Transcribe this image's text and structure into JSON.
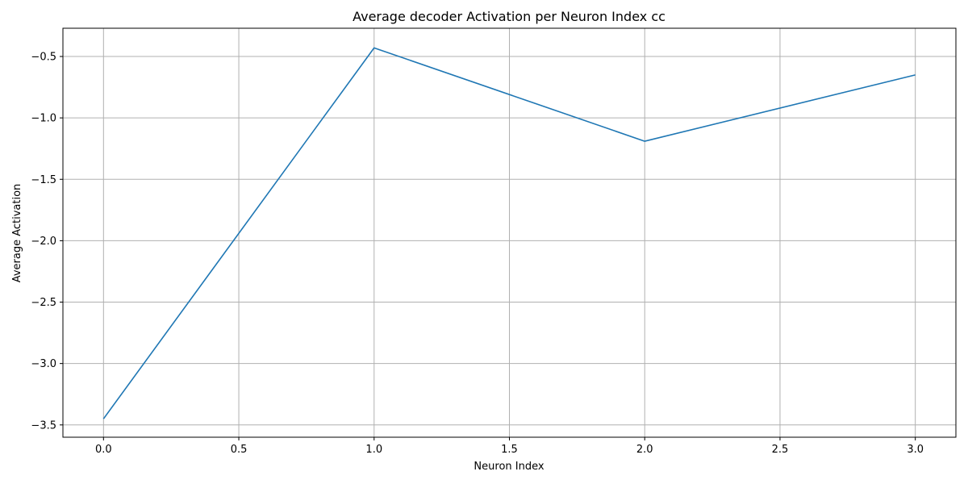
{
  "chart_data": {
    "type": "line",
    "title": "Average decoder Activation per Neuron Index cc",
    "xlabel": "Neuron Index",
    "ylabel": "Average Activation",
    "x": [
      0,
      1,
      2,
      3
    ],
    "series": [
      {
        "values": [
          -3.45,
          -0.43,
          -1.19,
          -0.65
        ]
      }
    ],
    "xlim": [
      -0.15,
      3.15
    ],
    "ylim": [
      -3.6,
      -0.27
    ],
    "xticks": [
      0.0,
      0.5,
      1.0,
      1.5,
      2.0,
      2.5,
      3.0
    ],
    "xtick_labels": [
      "0.0",
      "0.5",
      "1.0",
      "1.5",
      "2.0",
      "2.5",
      "3.0"
    ],
    "yticks": [
      -3.5,
      -3.0,
      -2.5,
      -2.0,
      -1.5,
      -1.0,
      -0.5
    ],
    "ytick_labels": [
      "−3.5",
      "−3.0",
      "−2.5",
      "−2.0",
      "−1.5",
      "−1.0",
      "−0.5"
    ],
    "grid": true,
    "legend": "none",
    "line_color": "#1f77b4",
    "grid_color": "#b0b0b0"
  }
}
